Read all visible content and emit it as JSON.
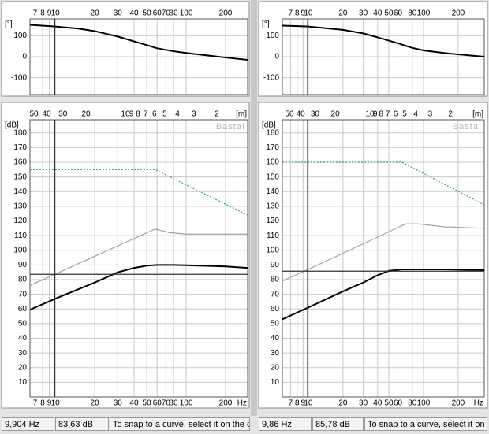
{
  "chart_data": [
    {
      "type": "line",
      "x_scale": "log",
      "xaxis_side": "top",
      "y_label": "[°]",
      "xlim": [
        6.4,
        295
      ],
      "xticks": [
        7,
        8,
        9,
        10,
        20,
        30,
        40,
        50,
        60,
        70,
        80,
        100,
        200
      ],
      "ylim": [
        -180,
        180
      ],
      "yticks": [
        -100,
        0,
        100
      ],
      "grid": true,
      "series": [
        {
          "color": "#000000",
          "x": [
            6.4,
            10,
            15,
            20,
            30,
            40,
            50,
            60,
            80,
            100,
            150,
            200,
            295
          ],
          "values": [
            152,
            144,
            134,
            122,
            96,
            73,
            55,
            40,
            26,
            18,
            5,
            -4,
            -15
          ]
        }
      ]
    },
    {
      "type": "line",
      "x_scale": "log",
      "xaxis_side": "bottom",
      "y_label": "[dB]",
      "x_unit": "Hz",
      "x2_unit": "[m]",
      "watermark": "Basta!",
      "xlim": [
        6.4,
        295
      ],
      "xticks": [
        7,
        8,
        9,
        10,
        20,
        30,
        40,
        50,
        60,
        70,
        80,
        100,
        200
      ],
      "x2lim": [
        53.6,
        1.163
      ],
      "x2ticks": [
        50,
        40,
        30,
        20,
        10,
        9,
        8,
        7,
        6,
        5,
        4,
        3,
        2
      ],
      "ylim": [
        0,
        189
      ],
      "yticks": [
        10,
        20,
        30,
        40,
        50,
        60,
        70,
        80,
        90,
        100,
        110,
        120,
        130,
        140,
        150,
        160,
        170,
        180
      ],
      "grid": true,
      "series": [
        {
          "color": "#2a9d8f",
          "style": "dotted",
          "x": [
            6.4,
            58,
            295
          ],
          "values": [
            155,
            155,
            124
          ]
        },
        {
          "color": "#a0a0a0",
          "x": [
            6.4,
            58,
            75,
            100,
            295
          ],
          "values": [
            76,
            114.5,
            112,
            111,
            111
          ]
        },
        {
          "color": "#000000",
          "x": [
            6.4,
            10,
            20,
            30,
            40,
            50,
            60,
            80,
            100,
            200,
            295
          ],
          "values": [
            59.5,
            67,
            78,
            85,
            88,
            89.5,
            90,
            90,
            89.8,
            89,
            88
          ]
        }
      ]
    },
    {
      "type": "line",
      "x_scale": "log",
      "xaxis_side": "top",
      "y_label": "[°]",
      "xlim": [
        5.95,
        337
      ],
      "xticks": [
        7,
        8,
        9,
        10,
        20,
        30,
        40,
        50,
        60,
        80,
        100,
        200
      ],
      "ylim": [
        -180,
        180
      ],
      "yticks": [
        -100,
        0,
        100
      ],
      "grid": true,
      "series": [
        {
          "color": "#000000",
          "x": [
            5.95,
            10,
            20,
            30,
            40,
            60,
            80,
            100,
            150,
            200,
            337
          ],
          "values": [
            148,
            144,
            128,
            111,
            92,
            64,
            42,
            30,
            18,
            11,
            0
          ]
        }
      ]
    },
    {
      "type": "line",
      "x_scale": "log",
      "xaxis_side": "bottom",
      "y_label": "[dB]",
      "x_unit": "Hz",
      "x2_unit": "[m]",
      "watermark": "Basta!",
      "xlim": [
        5.95,
        337
      ],
      "xticks": [
        7,
        8,
        9,
        10,
        20,
        30,
        40,
        50,
        60,
        80,
        100,
        200
      ],
      "x2lim": [
        57.6,
        1.018
      ],
      "x2ticks": [
        50,
        40,
        30,
        20,
        10,
        9,
        8,
        7,
        6,
        5,
        4,
        3,
        2
      ],
      "ylim": [
        0,
        189
      ],
      "yticks": [
        10,
        20,
        30,
        40,
        50,
        60,
        70,
        80,
        90,
        100,
        110,
        120,
        130,
        140,
        150,
        160,
        170,
        180
      ],
      "grid": true,
      "series": [
        {
          "color": "#2a9d8f",
          "style": "dotted",
          "x": [
            5.95,
            65,
            337
          ],
          "values": [
            160,
            160,
            131
          ]
        },
        {
          "color": "#a0a0a0",
          "x": [
            5.95,
            10,
            20,
            40,
            70,
            90,
            150,
            337
          ],
          "values": [
            79,
            87,
            98,
            109,
            118,
            118,
            116,
            115
          ]
        },
        {
          "color": "#000000",
          "x": [
            5.95,
            10,
            20,
            30,
            40,
            50,
            65,
            150,
            337
          ],
          "values": [
            53,
            61,
            72,
            78,
            83,
            86,
            87,
            87,
            86.5
          ]
        }
      ]
    }
  ],
  "status_bars": [
    {
      "frequency": {
        "value": 9.904,
        "label": "9,904 Hz"
      },
      "level": {
        "value": 83.63,
        "label": "83,63 dB"
      },
      "hint": "To snap to a curve, select it on the cu"
    },
    {
      "frequency": {
        "value": 9.86,
        "label": "9,86 Hz"
      },
      "level": {
        "value": 85.78,
        "label": "85,78 dB"
      },
      "hint": "To snap to a curve, select it on th"
    }
  ]
}
